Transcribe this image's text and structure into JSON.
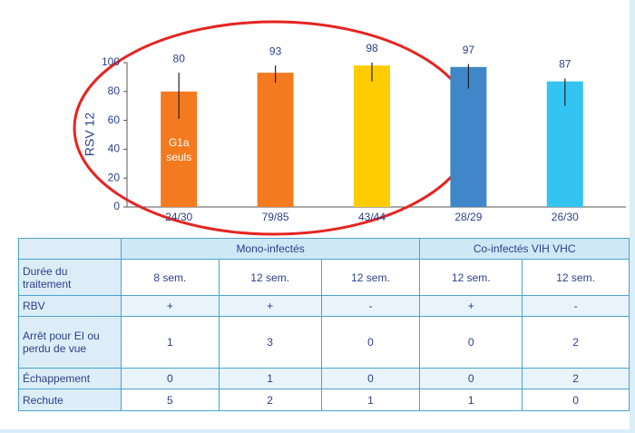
{
  "chart_data": {
    "type": "bar",
    "y_label": "RSV 12",
    "categories": [
      "24/30",
      "79/85",
      "43/44",
      "28/29",
      "26/30"
    ],
    "values": [
      80,
      93,
      98,
      97,
      87
    ],
    "error_low": [
      61,
      86,
      87,
      82,
      70
    ],
    "error_high": [
      93,
      98,
      100,
      99,
      89
    ],
    "colors": [
      "#f47a20",
      "#f47a20",
      "#ffcc00",
      "#3f87c9",
      "#33c4f2"
    ],
    "annotation": "G1a seuls",
    "ylim": [
      0,
      100
    ],
    "yticks": [
      0,
      20,
      40,
      60,
      80,
      100
    ],
    "grid": false
  },
  "table": {
    "header": [
      "Mono-infectés",
      "Co-infectés VIH VHC"
    ],
    "rows": [
      [
        "Durée du traitement",
        "8 sem.",
        "12 sem.",
        "12 sem.",
        "12 sem.",
        "12 sem."
      ],
      [
        "RBV",
        "+",
        "+",
        "-",
        "+",
        "-"
      ],
      [
        "Arrêt pour EI ou perdu de vue",
        1,
        3,
        0,
        0,
        2
      ],
      [
        "Échappement",
        0,
        1,
        0,
        0,
        2
      ],
      [
        "Rechute",
        5,
        2,
        1,
        1,
        0
      ]
    ]
  }
}
